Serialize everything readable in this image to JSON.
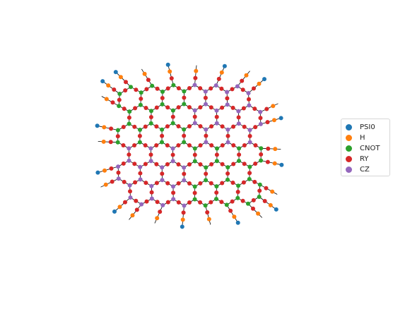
{
  "legend": {
    "items": [
      {
        "label": "PSI0",
        "color": "#1f77b4"
      },
      {
        "label": "H",
        "color": "#ff7f0e"
      },
      {
        "label": "CNOT",
        "color": "#2ca02c"
      },
      {
        "label": "RY",
        "color": "#d62728"
      },
      {
        "label": "CZ",
        "color": "#9467bd"
      }
    ]
  },
  "graph": {
    "edge_color": "#000000",
    "node_types": [
      "PSI0",
      "H",
      "CNOT",
      "RY",
      "CZ"
    ]
  }
}
